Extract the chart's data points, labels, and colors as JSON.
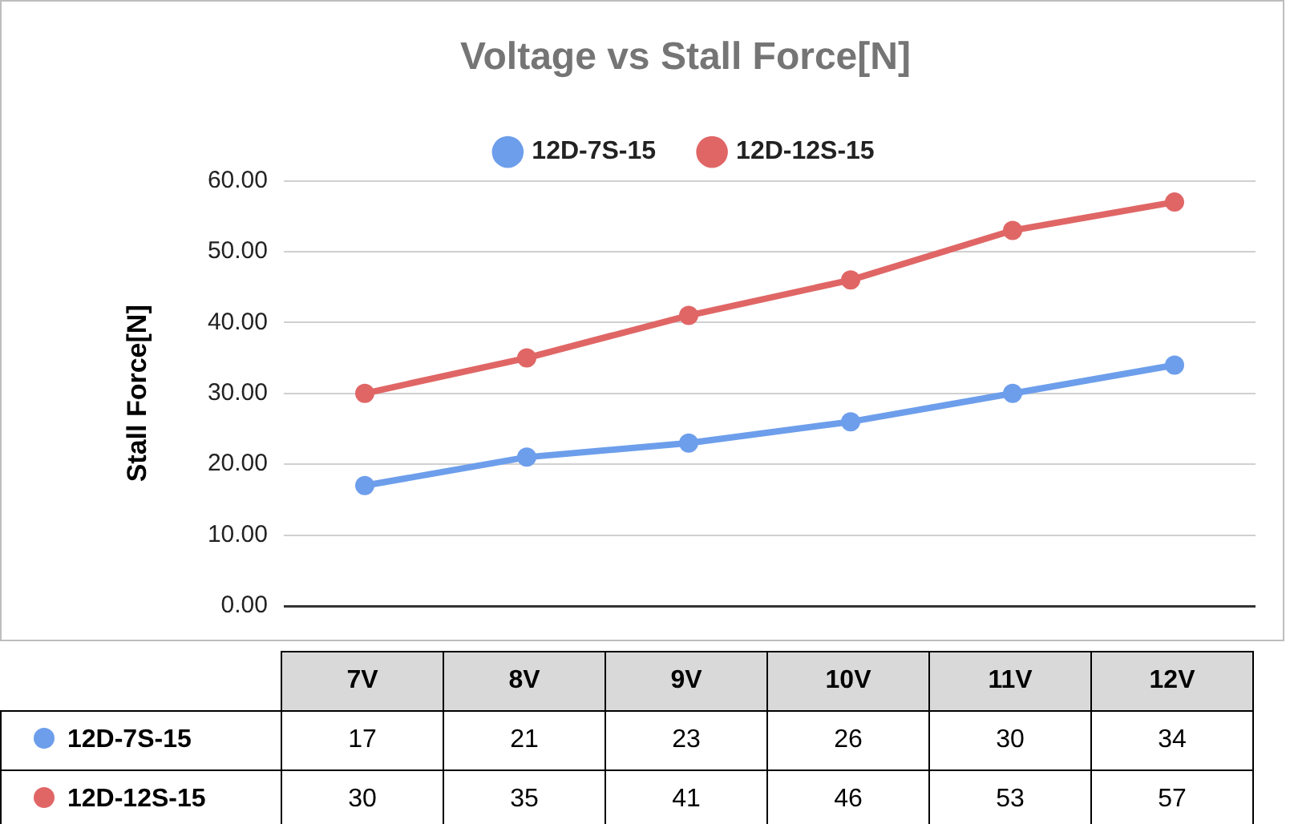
{
  "chart_data": {
    "type": "line",
    "title": "Voltage vs Stall Force[N]",
    "ylabel": "Stall Force[N]",
    "categories": [
      "7V",
      "8V",
      "9V",
      "10V",
      "11V",
      "12V"
    ],
    "series": [
      {
        "name": "12D-7S-15",
        "color": "#6d9eeb",
        "values": [
          17,
          21,
          23,
          26,
          30,
          34
        ]
      },
      {
        "name": "12D-12S-15",
        "color": "#e06666",
        "values": [
          30,
          35,
          41,
          46,
          53,
          57
        ]
      }
    ],
    "ylim": [
      0,
      60
    ],
    "yticks": [
      {
        "value": 0,
        "label": "0.00"
      },
      {
        "value": 10,
        "label": "10.00"
      },
      {
        "value": 20,
        "label": "20.00"
      },
      {
        "value": 30,
        "label": "30.00"
      },
      {
        "value": 40,
        "label": "40.00"
      },
      {
        "value": 50,
        "label": "50.00"
      },
      {
        "value": 60,
        "label": "60.00"
      }
    ],
    "grid": "y",
    "legend": "top",
    "marker": "circle",
    "line_style": "solid",
    "data_labels": true
  }
}
